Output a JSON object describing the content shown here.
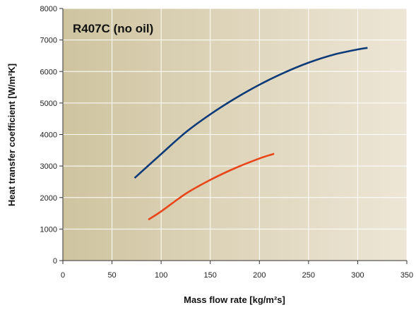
{
  "chart_data": {
    "type": "line",
    "title": "R407C (no oil)",
    "xlabel": "Mass flow rate [kg/m²s]",
    "ylabel": "Heat transfer coefficient [W/m²K]",
    "xlim": [
      0,
      350
    ],
    "ylim": [
      0,
      8000
    ],
    "x_ticks": [
      "0",
      "50",
      "100",
      "150",
      "200",
      "250",
      "300",
      "350"
    ],
    "y_ticks": [
      "0",
      "1000",
      "2000",
      "3000",
      "4000",
      "5000",
      "6000",
      "7000",
      "8000"
    ],
    "x_tick_values": [
      0,
      50,
      100,
      150,
      200,
      250,
      300,
      350
    ],
    "y_tick_values": [
      0,
      1000,
      2000,
      3000,
      4000,
      5000,
      6000,
      7000,
      8000
    ],
    "grid": true,
    "legend": "none",
    "series": [
      {
        "color": "#0d3a78",
        "x": [
          73,
          100,
          125,
          150,
          175,
          200,
          225,
          250,
          275,
          300,
          310
        ],
        "y": [
          2620,
          3380,
          4070,
          4640,
          5140,
          5580,
          5960,
          6280,
          6530,
          6700,
          6750
        ]
      },
      {
        "color": "#e8461a",
        "x": [
          87,
          100,
          125,
          150,
          175,
          200,
          215
        ],
        "y": [
          1300,
          1560,
          2120,
          2560,
          2930,
          3240,
          3390
        ]
      }
    ],
    "background_gradient": [
      "#cfc4a0",
      "#ede6d6"
    ],
    "grid_color": "#ffffff",
    "axis_color": "#333333"
  }
}
